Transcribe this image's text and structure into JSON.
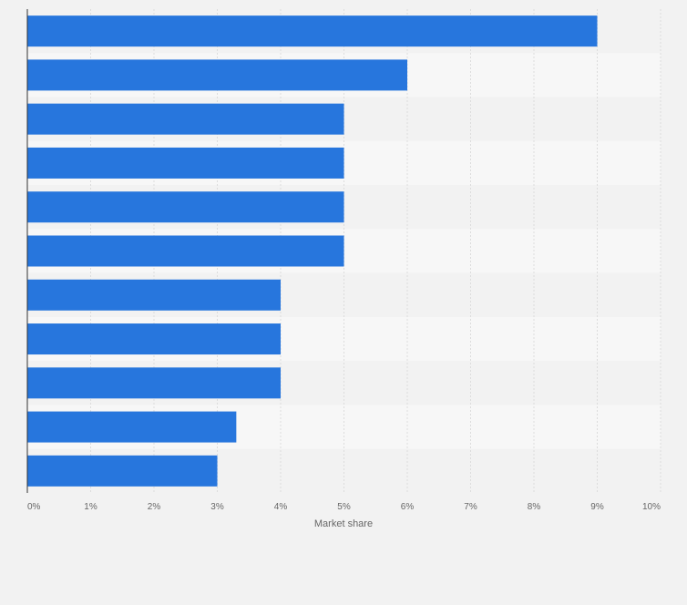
{
  "chart_data": {
    "type": "bar",
    "orientation": "horizontal",
    "categories": [
      "",
      "",
      "",
      "",
      "",
      "",
      "",
      "",
      "",
      "",
      ""
    ],
    "values": [
      9,
      6,
      5,
      5,
      5,
      5,
      4,
      4,
      4,
      3.3,
      3
    ],
    "xlabel": "Market share",
    "ylabel": "",
    "xlim": [
      0,
      10
    ],
    "ticks": [
      "0%",
      "1%",
      "2%",
      "3%",
      "4%",
      "5%",
      "6%",
      "7%",
      "8%",
      "9%",
      "10%"
    ],
    "grid": true,
    "legend": "none",
    "colors": {
      "bar": "#2776dd",
      "band_dark": "#f2f2f2",
      "band_light": "#f7f7f7",
      "grid": "#dcdcdc",
      "axis": "#333333",
      "tick_text": "#666666"
    }
  }
}
